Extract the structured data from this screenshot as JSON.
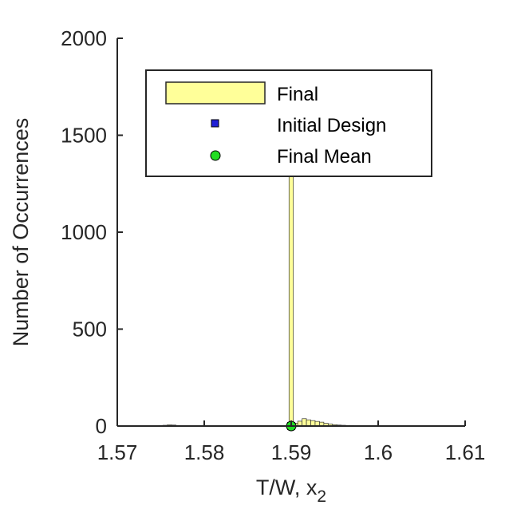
{
  "chart_data": {
    "type": "bar",
    "xlabel": "T/W, x",
    "xlabel_sub": "2",
    "ylabel": "Number of Occurrences",
    "xlim": [
      1.57,
      1.61
    ],
    "ylim": [
      0,
      2000
    ],
    "x_ticks": [
      "1.57",
      "1.58",
      "1.59",
      "1.6",
      "1.61"
    ],
    "y_ticks": [
      "0",
      "500",
      "1000",
      "1500",
      "2000"
    ],
    "grid": false,
    "legend_placement": "top-center",
    "series": [
      {
        "name": "Final",
        "kind": "histogram",
        "color": "#ffff99",
        "bin_width": 0.0005,
        "bins": [
          {
            "x": 1.5735,
            "count": 1
          },
          {
            "x": 1.574,
            "count": 2
          },
          {
            "x": 1.5745,
            "count": 2
          },
          {
            "x": 1.575,
            "count": 3
          },
          {
            "x": 1.5755,
            "count": 4
          },
          {
            "x": 1.576,
            "count": 6
          },
          {
            "x": 1.5765,
            "count": 5
          },
          {
            "x": 1.577,
            "count": 3
          },
          {
            "x": 1.5775,
            "count": 2
          },
          {
            "x": 1.578,
            "count": 2
          },
          {
            "x": 1.5785,
            "count": 1
          },
          {
            "x": 1.579,
            "count": 1
          },
          {
            "x": 1.5795,
            "count": 1
          },
          {
            "x": 1.5805,
            "count": 1
          },
          {
            "x": 1.5815,
            "count": 1
          },
          {
            "x": 1.5825,
            "count": 1
          },
          {
            "x": 1.5835,
            "count": 1
          },
          {
            "x": 1.5845,
            "count": 1
          },
          {
            "x": 1.5855,
            "count": 1
          },
          {
            "x": 1.5865,
            "count": 1
          },
          {
            "x": 1.5875,
            "count": 1
          },
          {
            "x": 1.5885,
            "count": 1
          },
          {
            "x": 1.59,
            "count": 1290
          },
          {
            "x": 1.5905,
            "count": 15
          },
          {
            "x": 1.591,
            "count": 25
          },
          {
            "x": 1.5915,
            "count": 38
          },
          {
            "x": 1.592,
            "count": 32
          },
          {
            "x": 1.5925,
            "count": 28
          },
          {
            "x": 1.593,
            "count": 24
          },
          {
            "x": 1.5935,
            "count": 20
          },
          {
            "x": 1.594,
            "count": 14
          },
          {
            "x": 1.5945,
            "count": 10
          },
          {
            "x": 1.595,
            "count": 7
          },
          {
            "x": 1.5955,
            "count": 5
          },
          {
            "x": 1.596,
            "count": 4
          },
          {
            "x": 1.5965,
            "count": 3
          },
          {
            "x": 1.597,
            "count": 3
          },
          {
            "x": 1.5975,
            "count": 2
          },
          {
            "x": 1.598,
            "count": 2
          },
          {
            "x": 1.5985,
            "count": 2
          },
          {
            "x": 1.599,
            "count": 2
          },
          {
            "x": 1.5995,
            "count": 1
          },
          {
            "x": 1.6,
            "count": 1
          },
          {
            "x": 1.6005,
            "count": 1
          },
          {
            "x": 1.601,
            "count": 1
          },
          {
            "x": 1.6015,
            "count": 1
          },
          {
            "x": 1.602,
            "count": 1
          },
          {
            "x": 1.6025,
            "count": 1
          },
          {
            "x": 1.603,
            "count": 1
          },
          {
            "x": 1.6035,
            "count": 1
          },
          {
            "x": 1.604,
            "count": 1
          },
          {
            "x": 1.6045,
            "count": 1
          },
          {
            "x": 1.605,
            "count": 1
          }
        ]
      },
      {
        "name": "Initial Design",
        "kind": "marker",
        "marker": "square",
        "color": "#1f1fd6",
        "x": 1.59,
        "y": 0
      },
      {
        "name": "Final Mean",
        "kind": "marker",
        "marker": "circle",
        "color": "#22dd22",
        "x": 1.59,
        "y": 0
      }
    ]
  }
}
